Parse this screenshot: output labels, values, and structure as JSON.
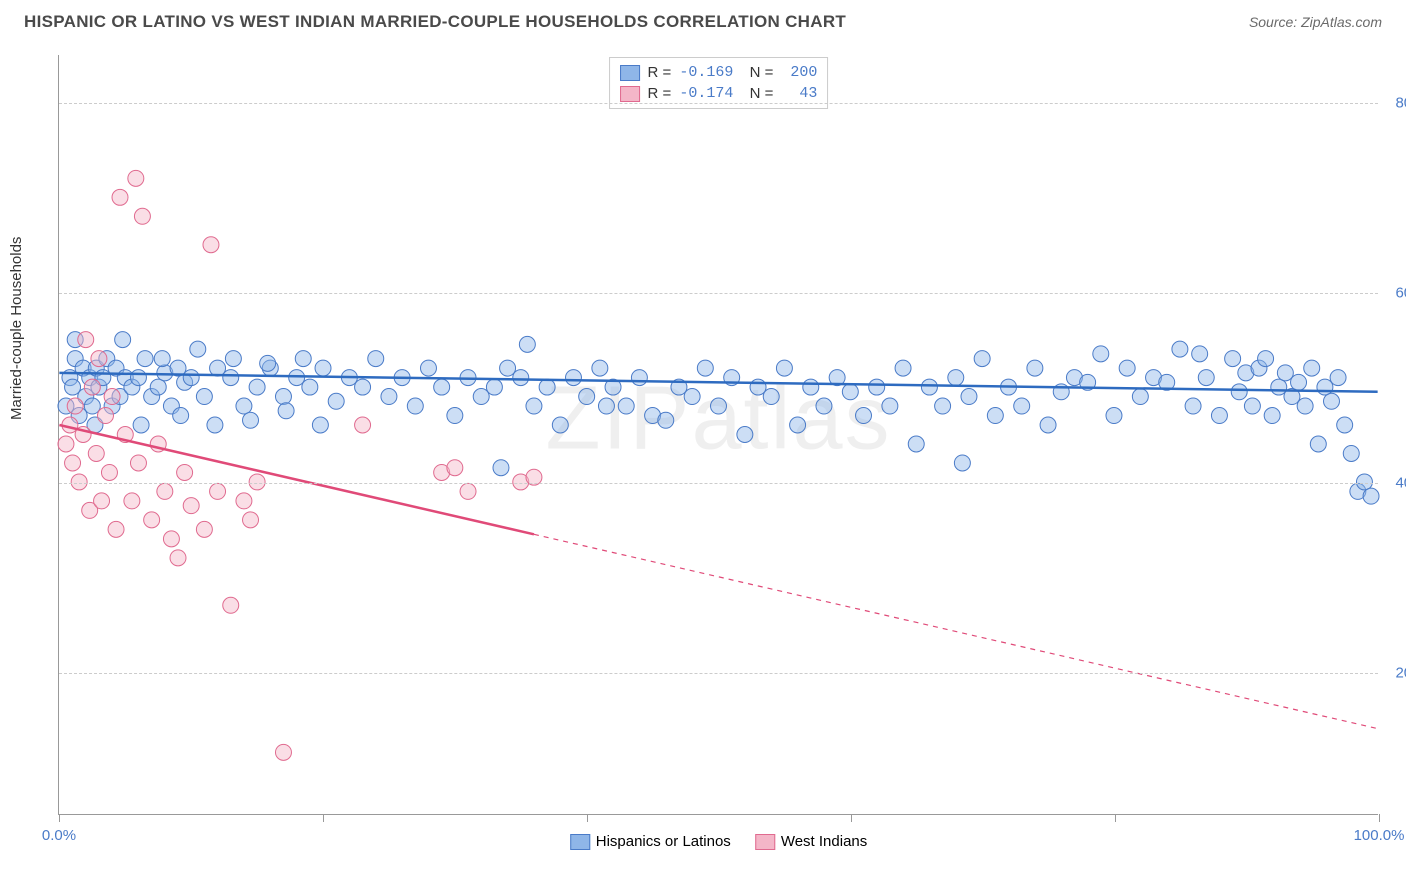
{
  "title": "HISPANIC OR LATINO VS WEST INDIAN MARRIED-COUPLE HOUSEHOLDS CORRELATION CHART",
  "source": "Source: ZipAtlas.com",
  "ylabel": "Married-couple Households",
  "watermark": "ZIPatlas",
  "chart": {
    "type": "scatter",
    "xlim": [
      0,
      100
    ],
    "ylim": [
      5,
      85
    ],
    "ytick_values": [
      20,
      40,
      60,
      80
    ],
    "ytick_labels": [
      "20.0%",
      "40.0%",
      "60.0%",
      "80.0%"
    ],
    "xtick_values": [
      0,
      20,
      40,
      60,
      80,
      100
    ],
    "xtick_labels": [
      "0.0%",
      "",
      "",
      "",
      "",
      "100.0%"
    ],
    "grid_color": "#cccccc",
    "background_color": "#ffffff",
    "marker_radius": 8,
    "marker_opacity": 0.45,
    "series": [
      {
        "name": "Hispanics or Latinos",
        "color_fill": "#8fb6e8",
        "color_stroke": "#4a7bc8",
        "line_color": "#2e6bc0",
        "line_width": 2.5,
        "R": "-0.169",
        "N": "200",
        "regression": {
          "x1": 0,
          "y1": 51.5,
          "x2": 100,
          "y2": 49.5,
          "solid_until_x": 100
        },
        "points": [
          [
            0.5,
            48
          ],
          [
            0.8,
            51
          ],
          [
            1,
            50
          ],
          [
            1.2,
            53
          ],
          [
            1.5,
            47
          ],
          [
            1.8,
            52
          ],
          [
            2,
            49
          ],
          [
            2.3,
            51
          ],
          [
            2.5,
            48
          ],
          [
            2.8,
            52
          ],
          [
            3,
            50
          ],
          [
            3.3,
            51
          ],
          [
            3.6,
            53
          ],
          [
            4,
            48
          ],
          [
            4.3,
            52
          ],
          [
            4.6,
            49
          ],
          [
            5,
            51
          ],
          [
            5.5,
            50
          ],
          [
            6,
            51
          ],
          [
            6.5,
            53
          ],
          [
            7,
            49
          ],
          [
            7.5,
            50
          ],
          [
            8,
            51.5
          ],
          [
            8.5,
            48
          ],
          [
            9,
            52
          ],
          [
            9.5,
            50.5
          ],
          [
            10,
            51
          ],
          [
            11,
            49
          ],
          [
            12,
            52
          ],
          [
            13,
            51
          ],
          [
            14,
            48
          ],
          [
            15,
            50
          ],
          [
            16,
            52
          ],
          [
            17,
            49
          ],
          [
            18,
            51
          ],
          [
            19,
            50
          ],
          [
            20,
            52
          ],
          [
            21,
            48.5
          ],
          [
            22,
            51
          ],
          [
            23,
            50
          ],
          [
            24,
            53
          ],
          [
            25,
            49
          ],
          [
            26,
            51
          ],
          [
            27,
            48
          ],
          [
            28,
            52
          ],
          [
            29,
            50
          ],
          [
            30,
            47
          ],
          [
            31,
            51
          ],
          [
            32,
            49
          ],
          [
            33,
            50
          ],
          [
            33.5,
            41.5
          ],
          [
            34,
            52
          ],
          [
            35,
            51
          ],
          [
            35.5,
            54.5
          ],
          [
            36,
            48
          ],
          [
            37,
            50
          ],
          [
            38,
            46
          ],
          [
            39,
            51
          ],
          [
            40,
            49
          ],
          [
            41,
            52
          ],
          [
            41.5,
            48
          ],
          [
            42,
            50
          ],
          [
            43,
            48
          ],
          [
            44,
            51
          ],
          [
            45,
            47
          ],
          [
            46,
            46.5
          ],
          [
            47,
            50
          ],
          [
            48,
            49
          ],
          [
            49,
            52
          ],
          [
            50,
            48
          ],
          [
            51,
            51
          ],
          [
            52,
            45
          ],
          [
            53,
            50
          ],
          [
            54,
            49
          ],
          [
            55,
            52
          ],
          [
            56,
            46
          ],
          [
            57,
            50
          ],
          [
            58,
            48
          ],
          [
            59,
            51
          ],
          [
            60,
            49.5
          ],
          [
            61,
            47
          ],
          [
            62,
            50
          ],
          [
            63,
            48
          ],
          [
            64,
            52
          ],
          [
            65,
            44
          ],
          [
            66,
            50
          ],
          [
            67,
            48
          ],
          [
            68,
            51
          ],
          [
            68.5,
            42
          ],
          [
            69,
            49
          ],
          [
            70,
            53
          ],
          [
            71,
            47
          ],
          [
            72,
            50
          ],
          [
            73,
            48
          ],
          [
            74,
            52
          ],
          [
            75,
            46
          ],
          [
            76,
            49.5
          ],
          [
            77,
            51
          ],
          [
            78,
            50.5
          ],
          [
            79,
            53.5
          ],
          [
            80,
            47
          ],
          [
            81,
            52
          ],
          [
            82,
            49
          ],
          [
            83,
            51
          ],
          [
            84,
            50.5
          ],
          [
            85,
            54
          ],
          [
            86,
            48
          ],
          [
            86.5,
            53.5
          ],
          [
            87,
            51
          ],
          [
            88,
            47
          ],
          [
            89,
            53
          ],
          [
            89.5,
            49.5
          ],
          [
            90,
            51.5
          ],
          [
            90.5,
            48
          ],
          [
            91,
            52
          ],
          [
            91.5,
            53
          ],
          [
            92,
            47
          ],
          [
            92.5,
            50
          ],
          [
            93,
            51.5
          ],
          [
            93.5,
            49
          ],
          [
            94,
            50.5
          ],
          [
            94.5,
            48
          ],
          [
            95,
            52
          ],
          [
            95.5,
            44
          ],
          [
            96,
            50
          ],
          [
            96.5,
            48.5
          ],
          [
            97,
            51
          ],
          [
            97.5,
            46
          ],
          [
            98,
            43
          ],
          [
            98.5,
            39
          ],
          [
            99,
            40
          ],
          [
            99.5,
            38.5
          ],
          [
            1.2,
            55
          ],
          [
            2.7,
            46
          ],
          [
            4.8,
            55
          ],
          [
            6.2,
            46
          ],
          [
            7.8,
            53
          ],
          [
            9.2,
            47
          ],
          [
            10.5,
            54
          ],
          [
            11.8,
            46
          ],
          [
            13.2,
            53
          ],
          [
            14.5,
            46.5
          ],
          [
            15.8,
            52.5
          ],
          [
            17.2,
            47.5
          ],
          [
            18.5,
            53
          ],
          [
            19.8,
            46
          ]
        ]
      },
      {
        "name": "West Indians",
        "color_fill": "#f4b6c8",
        "color_stroke": "#e06a8f",
        "line_color": "#e04a78",
        "line_width": 2.5,
        "R": "-0.174",
        "N": "43",
        "regression": {
          "x1": 0,
          "y1": 46,
          "x2": 100,
          "y2": 14,
          "solid_until_x": 36
        },
        "points": [
          [
            0.5,
            44
          ],
          [
            0.8,
            46
          ],
          [
            1,
            42
          ],
          [
            1.2,
            48
          ],
          [
            1.5,
            40
          ],
          [
            1.8,
            45
          ],
          [
            2,
            55
          ],
          [
            2.3,
            37
          ],
          [
            2.5,
            50
          ],
          [
            2.8,
            43
          ],
          [
            3,
            53
          ],
          [
            3.2,
            38
          ],
          [
            3.5,
            47
          ],
          [
            3.8,
            41
          ],
          [
            4,
            49
          ],
          [
            4.3,
            35
          ],
          [
            4.6,
            70
          ],
          [
            5,
            45
          ],
          [
            5.5,
            38
          ],
          [
            5.8,
            72
          ],
          [
            6,
            42
          ],
          [
            6.3,
            68
          ],
          [
            7,
            36
          ],
          [
            7.5,
            44
          ],
          [
            8,
            39
          ],
          [
            8.5,
            34
          ],
          [
            9,
            32
          ],
          [
            9.5,
            41
          ],
          [
            10,
            37.5
          ],
          [
            11,
            35
          ],
          [
            11.5,
            65
          ],
          [
            12,
            39
          ],
          [
            13,
            27
          ],
          [
            14,
            38
          ],
          [
            14.5,
            36
          ],
          [
            15,
            40
          ],
          [
            17,
            11.5
          ],
          [
            23,
            46
          ],
          [
            29,
            41
          ],
          [
            30,
            41.5
          ],
          [
            31,
            39
          ],
          [
            35,
            40
          ],
          [
            36,
            40.5
          ]
        ]
      }
    ]
  },
  "legend_bottom": [
    {
      "label": "Hispanics or Latinos",
      "fill": "#8fb6e8",
      "stroke": "#4a7bc8"
    },
    {
      "label": "West Indians",
      "fill": "#f4b6c8",
      "stroke": "#e06a8f"
    }
  ]
}
